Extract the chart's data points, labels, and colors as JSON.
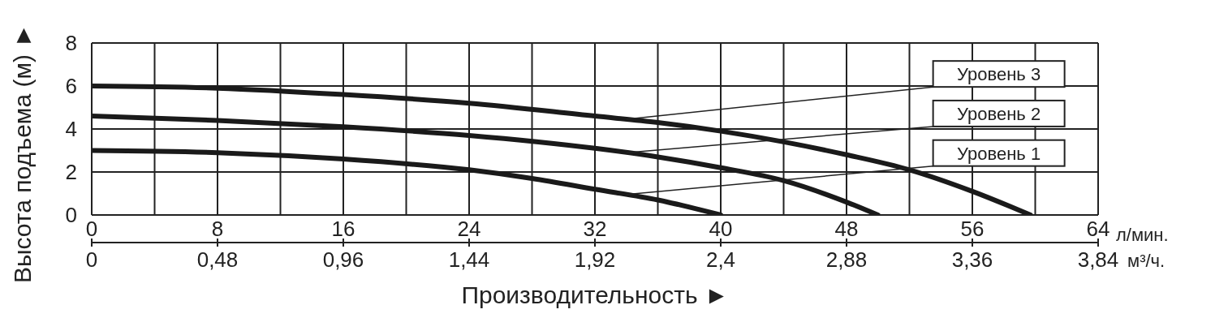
{
  "chart_data": {
    "type": "line",
    "xlabel": "Производительность ►",
    "ylabel": "Высота подъема (м) ►",
    "x2label": "м³/ч.",
    "annotations": [
      "л/мин."
    ],
    "xlim": [
      0,
      64
    ],
    "xticks": [
      0,
      {
        "value": 4,
        "label": null
      },
      8,
      {
        "value": 12,
        "label": null
      },
      16,
      {
        "value": 20,
        "label": null
      },
      24,
      {
        "value": 28,
        "label": null
      },
      32,
      {
        "value": 36,
        "label": null
      },
      40,
      {
        "value": 44,
        "label": null
      },
      48,
      {
        "value": 52,
        "label": null
      },
      56,
      {
        "value": 60,
        "label": null
      },
      64
    ],
    "x2lim": [
      0,
      3.84
    ],
    "x2ticks": [
      0,
      {
        "value": 0.48,
        "label": "0,48"
      },
      {
        "value": 0.96,
        "label": "0,96"
      },
      {
        "value": 1.44,
        "label": "1,44"
      },
      {
        "value": 1.92,
        "label": "1,92"
      },
      {
        "value": 2.4,
        "label": "2,4"
      },
      {
        "value": 2.88,
        "label": "2,88"
      },
      {
        "value": 3.36,
        "label": "3,36"
      },
      {
        "value": 3.84,
        "label": "3,84"
      }
    ],
    "ylim": [
      0,
      8
    ],
    "yticks": [
      0,
      2,
      4,
      6,
      8
    ],
    "grid": true,
    "series": [
      {
        "name": "Уровень 1",
        "color": "#1a1a1a",
        "x": [
          0,
          8,
          16,
          24,
          28,
          32,
          36,
          40
        ],
        "values": [
          3.0,
          2.9,
          2.6,
          2.1,
          1.7,
          1.2,
          0.7,
          0
        ]
      },
      {
        "name": "Уровень 2",
        "color": "#1a1a1a",
        "x": [
          0,
          8,
          16,
          24,
          32,
          36,
          40,
          44,
          48,
          50
        ],
        "values": [
          4.6,
          4.4,
          4.1,
          3.7,
          3.1,
          2.7,
          2.2,
          1.6,
          0.6,
          0
        ]
      },
      {
        "name": "Уровень 3",
        "color": "#1a1a1a",
        "x": [
          0,
          8,
          16,
          24,
          32,
          36,
          40,
          44,
          48,
          52,
          56,
          59.7
        ],
        "values": [
          6.0,
          5.9,
          5.6,
          5.2,
          4.6,
          4.3,
          3.9,
          3.4,
          2.8,
          2.1,
          1.1,
          0
        ]
      }
    ]
  }
}
